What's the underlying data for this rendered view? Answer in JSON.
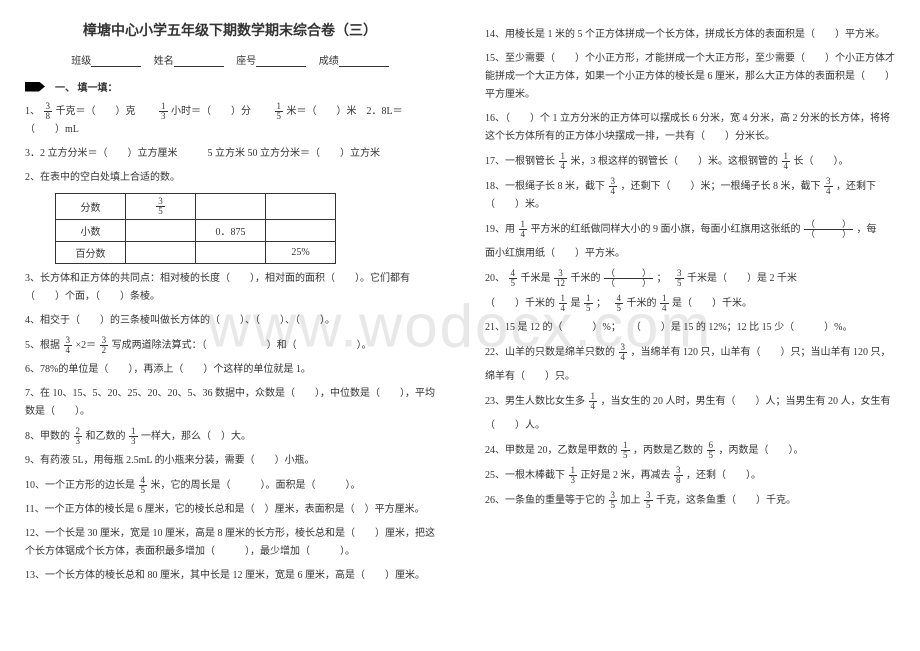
{
  "watermark": "www.wodocx.com",
  "title": "樟塘中心小学五年级下期数学期末综合卷（三）",
  "info": {
    "class": "班级",
    "name": "姓名",
    "seat": "座号",
    "score": "成绩"
  },
  "section1": "一、 填一填：",
  "table": {
    "r1c1": "分数",
    "r1c2_num": "3",
    "r1c2_den": "5",
    "r2c1": "小数",
    "r2c3": "0．875",
    "r3c1": "百分数",
    "r3c4": "25%"
  },
  "left": {
    "q1a": "1、",
    "q1_f1n": "3",
    "q1_f1d": "8",
    "q1b": "千克＝（　　）克　　",
    "q1_f2n": "1",
    "q1_f2d": "3",
    "q1c": "小时＝（　　）分　　",
    "q1_f3n": "1",
    "q1_f3d": "5",
    "q1d": "米＝（　　）米　2．8L＝（　　）mL",
    "q1e": "3．2 立方分米＝（　　）立方厘米　　　5 立方米 50 立方分米＝（　　）立方米",
    "q2": "2、在表中的空白处填上合适的数。",
    "q3": "3、长方体和正方体的共同点：相对棱的长度（　　），相对面的面积（　　）。它们都有（　　）个面，（　　）条棱。",
    "q4a": "4、相交于（　　）的三条棱叫做长方体的（　　）、（　　）、（　　）。",
    "q5a": "5、根据",
    "q5_f1n": "3",
    "q5_f1d": "4",
    "q5b": "×2＝",
    "q5_f2n": "3",
    "q5_f2d": "2",
    "q5c": "写成两道除法算式：（　　　　　　）和（　　　　　　）。",
    "q6": "6、78%的单位是（　　），再添上（　　）个这样的单位就是 1。",
    "q7": "7、在 10、15、5、20、25、20、20、5、36 数据中，众数是（　　），中位数是（　　），平均数是（　　）。",
    "q8a": "8、甲数的",
    "q8_f1n": "2",
    "q8_f1d": "3",
    "q8b": "和乙数的",
    "q8_f2n": "1",
    "q8_f2d": "3",
    "q8c": "一样大，那么（　）大。",
    "q9": "9、有药液 5L，用每瓶 2.5mL 的小瓶来分装，需要（　　）小瓶。",
    "q10a": "10、一个正方形的边长是",
    "q10_fn": "4",
    "q10_fd": "5",
    "q10b": "米，它的周长是（　　　）。面积是（　　　）。",
    "q11": "11、一个正方体的棱长是 6 厘米，它的棱长总和是（　）厘米，表面积是（　）平方厘米。",
    "q12": "12、一个长是 30 厘米，宽是 10 厘米，高是 8 厘米的长方形，棱长总和是（　　）厘米，把这个长方体锯成个长方体，表面积最多增加（　　　），最少增加（　　　）。",
    "q13": "13、一个长方体的棱长总和 80 厘米，其中长是 12 厘米，宽是 6 厘米，高是（　　）厘米。"
  },
  "right": {
    "q14": "14、用棱长是 1 米的 5 个正方体拼成一个长方体，拼成长方体的表面积是（　　）平方米。",
    "q15": "15、至少需要（　　）个小正方形，才能拼成一个大正方形，至少需要（　　）个小正方体才能拼成一个大正方体，如果一个小正方体的棱长是 6 厘米，那么大正方体的表面积是（　　）平方厘米。",
    "q16": "16、（　　）个 1 立方分米的正方体可以摆成长 6 分米，宽 4 分米，高 2 分米的长方体，将将这个长方体所有的正方体小块摆成一排，一共有（　　）分米长。",
    "q17a": "17、一根钢管长",
    "q17_f1n": "1",
    "q17_f1d": "4",
    "q17b": "米，3 根这样的钢管长（　　）米。这根钢管的",
    "q17_f2n": "1",
    "q17_f2d": "4",
    "q17c": "长（　　）。",
    "q18a": "18、一根绳子长 8 米，截下",
    "q18_f1n": "3",
    "q18_f1d": "4",
    "q18b": "，还剩下（　　）米；一根绳子长 8 米，截下",
    "q18_f2n": "3",
    "q18_f2d": "4",
    "q18c": "，还剩下（　　）米。",
    "q19a": "19、用",
    "q19_f1n": "1",
    "q19_f1d": "4",
    "q19b": "平方米的红纸做同样大小的 9 面小旗，每面小红旗用这张纸的",
    "q19_bn": "（　　　）",
    "q19_bd": "（　　　）",
    "q19c": "，每",
    "q19d": "面小红旗用纸（　　）平方米。",
    "q20a": "20、",
    "q20_f1n": "4",
    "q20_f1d": "5",
    "q20b": "千米是",
    "q20_f2n": "3",
    "q20_f2d": "12",
    "q20c": "千米的",
    "q20_bn": "（　　　）",
    "q20_bd": "（　　　）",
    "q20d": "；　",
    "q20_f3n": "3",
    "q20_f3d": "5",
    "q20e": "千米是（　　）是 2 千米",
    "q20f": "（　　）千米的",
    "q20_f4n": "1",
    "q20_f4d": "4",
    "q20g": "是",
    "q20_f5n": "1",
    "q20_f5d": "5",
    "q20h": "；　",
    "q20_f6n": "4",
    "q20_f6d": "5",
    "q20i": "千米的",
    "q20_f7n": "1",
    "q20_f7d": "4",
    "q20j": "是（　　）千米。",
    "q21": "21、15 是 12 的（　　　）%；　　（　　）是 15 的 12%；12 比 15 少（　　　）%。",
    "q22a": "22、山羊的只数是绵羊只数的",
    "q22_f1n": "3",
    "q22_f1d": "4",
    "q22b": "，当绵羊有 120 只，山羊有（　　）只；当山羊有 120 只，",
    "q22c": "绵羊有（　　）只。",
    "q23a": "23、男生人数比女生多",
    "q23_f1n": "1",
    "q23_f1d": "4",
    "q23b": "，当女生的 20 人时，男生有（　　）人；当男生有 20 人，女生有",
    "q23c": "（　　）人。",
    "q24a": "24、甲数是 20，乙数是甲数的",
    "q24_f1n": "1",
    "q24_f1d": "5",
    "q24b": "，丙数是乙数的",
    "q24_f2n": "6",
    "q24_f2d": "5",
    "q24c": "，丙数是（　　）。",
    "q25a": "25、一根木棒截下",
    "q25_f1n": "1",
    "q25_f1d": "3",
    "q25b": "正好是 2 米，再减去",
    "q25_f2n": "3",
    "q25_f2d": "8",
    "q25c": "，还剩（　　）。",
    "q26a": "26、一条鱼的重量等于它的",
    "q26_f1n": "3",
    "q26_f1d": "5",
    "q26b": "加上",
    "q26_f2n": "3",
    "q26_f2d": "5",
    "q26c": "千克，这条鱼重（　　）千克。"
  }
}
